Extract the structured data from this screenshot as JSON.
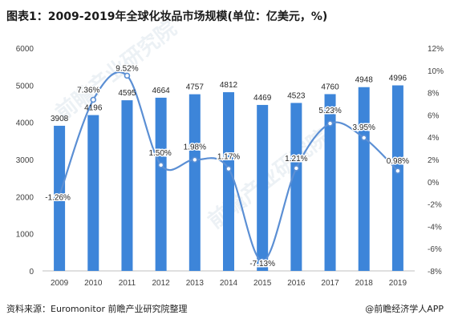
{
  "header": {
    "title": "图表1：2009-2019年全球化妆品市场规模(单位：亿美元，%)"
  },
  "footer": {
    "source": "资料来源：Euromonitor 前瞻产业研究院整理",
    "credit": "@前瞻经济学人APP"
  },
  "watermark": "前瞻产业研究院",
  "chart_data": {
    "type": "bar",
    "title": "图表1：2009-2019年全球化妆品市场规模(单位：亿美元，%)",
    "categories": [
      "2009",
      "2010",
      "2011",
      "2012",
      "2013",
      "2014",
      "2015",
      "2016",
      "2017",
      "2018",
      "2019"
    ],
    "series": [
      {
        "type": "bar",
        "axis": "left",
        "values": [
          3908,
          4196,
          4595,
          4664,
          4757,
          4812,
          4469,
          4523,
          4760,
          4948,
          4996
        ],
        "labels": [
          "3908",
          "4196",
          "4595",
          "4664",
          "4757",
          "4812",
          "4469",
          "4523",
          "4760",
          "4948",
          "4996"
        ],
        "color": "#3d85d9"
      },
      {
        "type": "line",
        "axis": "right",
        "smooth": true,
        "values": [
          -1.26,
          7.36,
          9.52,
          1.5,
          1.98,
          1.17,
          -7.13,
          1.21,
          5.23,
          3.95,
          0.98
        ],
        "labels": [
          "-1.26%",
          "7.36%",
          "9.52%",
          "1.50%",
          "1.98%",
          "1.17%",
          "-7.13%",
          "1.21%",
          "5.23%",
          "3.95%",
          "0.98%"
        ],
        "color": "#5b8fd4"
      }
    ],
    "y_left": {
      "range": [
        0,
        6000
      ],
      "ticks": [
        "0",
        "1000",
        "2000",
        "3000",
        "4000",
        "5000",
        "6000"
      ]
    },
    "y_right": {
      "range": [
        -8,
        12
      ],
      "ticks": [
        "-8%",
        "-6%",
        "-4%",
        "-2%",
        "0%",
        "2%",
        "4%",
        "6%",
        "8%",
        "10%",
        "12%"
      ]
    },
    "grid": false,
    "legend": "none"
  }
}
